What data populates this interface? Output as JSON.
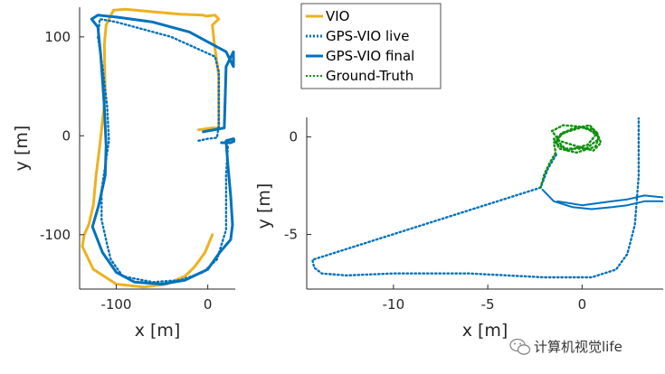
{
  "watermark": {
    "text": "计算机视觉life",
    "icon": "wechat-icon"
  },
  "colors": {
    "vio": "#EDB120",
    "gps_vio_live": "#0072BD",
    "gps_vio_final": "#0072BD",
    "ground_truth": "#109010"
  },
  "chart_data": [
    {
      "type": "line",
      "title": "",
      "xlabel": "x [m]",
      "ylabel": "y [m]",
      "xlim": [
        -140,
        30
      ],
      "ylim": [
        -155,
        130
      ],
      "xticks": [
        -100,
        0
      ],
      "xtick_labels": [
        "-100",
        "0"
      ],
      "yticks": [
        100,
        0,
        -100
      ],
      "ytick_labels": [
        "100",
        "0",
        "-100"
      ],
      "grid": false,
      "legend": {
        "placement": "outside-top",
        "entries": [
          "VIO",
          "GPS-VIO live",
          "GPS-VIO final",
          "Ground-Truth"
        ]
      },
      "series": [
        {
          "name": "VIO",
          "style": "solid",
          "color": "#EDB120",
          "x": [
            -10,
            5,
            12,
            12,
            7,
            5,
            12,
            8,
            -2,
            -5,
            -30,
            -55,
            -90,
            -103,
            -111,
            -113,
            -112,
            -118,
            -122,
            -125,
            -130,
            -135,
            -137,
            -125,
            -100,
            -70,
            -45,
            -25,
            -15,
            -10,
            -3,
            5
          ],
          "y": [
            6,
            8,
            8,
            60,
            95,
            112,
            118,
            122,
            121,
            122,
            123,
            125,
            128,
            127,
            112,
            92,
            40,
            -10,
            -40,
            -70,
            -90,
            -100,
            -112,
            -135,
            -150,
            -153,
            -150,
            -142,
            -133,
            -127,
            -118,
            -100
          ]
        },
        {
          "name": "GPS-VIO live",
          "style": "dotted",
          "color": "#0072BD",
          "x": [
            -10,
            0,
            10,
            12,
            12,
            8,
            -40,
            -100,
            -118,
            -120,
            -115,
            -110,
            -108,
            -116,
            -116,
            -110,
            -106,
            -93,
            -60,
            -30,
            -5,
            10,
            20,
            20,
            22
          ],
          "y": [
            -5,
            -3,
            -2,
            10,
            65,
            80,
            100,
            115,
            118,
            100,
            70,
            30,
            -5,
            -55,
            -85,
            -110,
            -125,
            -142,
            -148,
            -146,
            -138,
            -125,
            -95,
            -40,
            -10
          ]
        },
        {
          "name": "GPS-VIO final",
          "style": "solid",
          "color": "#0072BD",
          "x": [
            -5,
            18,
            20,
            28,
            28,
            20,
            -20,
            -60,
            -100,
            -120,
            -127,
            -120,
            -117,
            -113,
            -111,
            -112,
            -119,
            -126,
            -115,
            -100,
            -80,
            -50,
            -25,
            0,
            13,
            25,
            27,
            25,
            22,
            20,
            28,
            30,
            25,
            15
          ],
          "y": [
            4,
            8,
            70,
            85,
            70,
            85,
            105,
            115,
            120,
            122,
            118,
            110,
            82,
            30,
            -10,
            -40,
            -70,
            -92,
            -118,
            -138,
            -148,
            -150,
            -146,
            -135,
            -118,
            -105,
            -90,
            -60,
            -30,
            -5,
            -3,
            -5,
            -7,
            -7
          ]
        }
      ]
    },
    {
      "type": "line",
      "title": "",
      "xlabel": "x [m]",
      "ylabel": "y [m]",
      "xlim": [
        -14.6,
        4.3
      ],
      "ylim": [
        -7.8,
        1.0
      ],
      "xticks": [
        -10,
        -5,
        0
      ],
      "xtick_labels": [
        "-10",
        "-5",
        "0"
      ],
      "yticks": [
        0,
        -5
      ],
      "ytick_labels": [
        "0",
        "-5"
      ],
      "grid": false,
      "series": [
        {
          "name": "GPS-VIO live",
          "style": "dotted",
          "color": "#0072BD",
          "x": [
            3.0,
            3.0,
            2.8,
            2.4,
            1.8,
            0.5,
            -2,
            -6,
            -10,
            -12.5,
            -13.8,
            -14.2,
            -14.3,
            -2.2,
            -1.8,
            -1.3
          ],
          "y": [
            1.0,
            -2.0,
            -4.5,
            -6.0,
            -6.8,
            -7.2,
            -7.2,
            -7.0,
            -7.0,
            -7.1,
            -7.0,
            -6.7,
            -6.3,
            -2.6,
            -1.6,
            -0.8
          ]
        },
        {
          "name": "GPS-VIO final",
          "style": "solid",
          "color": "#0072BD",
          "x": [
            -2.1,
            -1.5,
            -0.5,
            0.5,
            1.6,
            2.4,
            3.3,
            4.3
          ],
          "y": [
            -2.7,
            -3.3,
            -3.6,
            -3.7,
            -3.6,
            -3.5,
            -3.3,
            -3.3
          ]
        },
        {
          "name": "GPS-VIO final",
          "style": "solid",
          "color": "#0072BD",
          "x": [
            -1.3,
            0.0,
            1.6,
            2.4,
            3.3,
            4.3
          ],
          "y": [
            -3.3,
            -3.5,
            -3.3,
            -3.2,
            -3.0,
            -3.1
          ]
        },
        {
          "name": "Ground-Truth",
          "style": "dotted",
          "color": "#109010",
          "x": [
            -2.2,
            -2.0,
            -1.7,
            -1.4,
            -1.5,
            -1.0,
            0.0,
            0.8,
            1.0,
            0.6,
            -0.2,
            -1.2,
            -1.6,
            -1.0,
            0.2,
            0.9,
            0.7,
            -0.3,
            -1.2,
            -1.5,
            -0.6,
            0.4,
            0.8,
            0.3,
            -0.8,
            -1.4,
            -1.1,
            -0.2,
            0.6,
            0.9,
            0.2,
            -0.9,
            -1.3
          ],
          "y": [
            -2.6,
            -1.9,
            -1.3,
            -0.8,
            -0.3,
            0.2,
            0.5,
            0.2,
            -0.3,
            -0.7,
            -0.5,
            -0.2,
            0.3,
            0.6,
            0.5,
            0.0,
            -0.5,
            -0.8,
            -0.6,
            -0.1,
            0.4,
            0.6,
            0.2,
            -0.4,
            -0.7,
            -0.3,
            0.2,
            0.5,
            0.4,
            -0.1,
            -0.6,
            -0.6,
            -0.2
          ]
        }
      ]
    }
  ]
}
